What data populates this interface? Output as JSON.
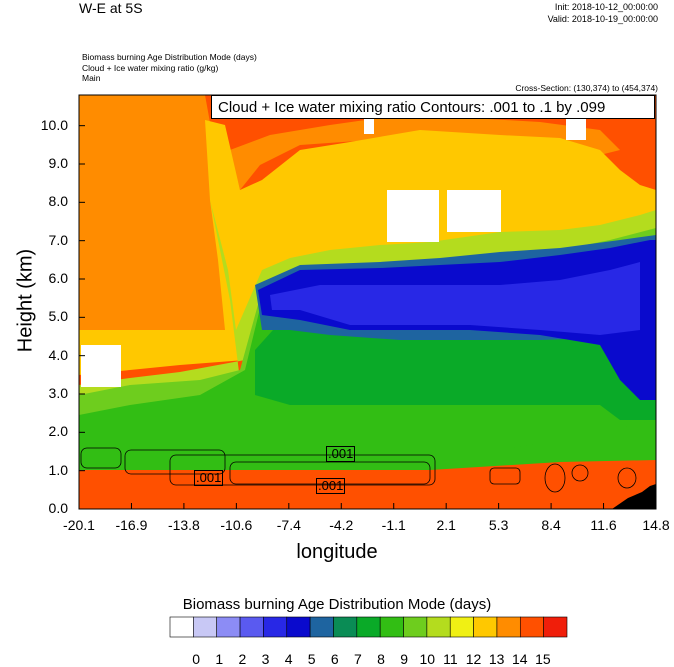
{
  "header": {
    "title": "W-E at 5S",
    "init": "Init: 2018-10-12_00:00:00",
    "valid": "Valid: 2018-10-19_00:00:00",
    "field_lines": [
      "Biomass burning Age Distribution Mode   (days)",
      "Cloud + Ice water mixing ratio   (g/kg)",
      "Main"
    ],
    "cross_section": "Cross-Section: (130,374) to (454,374)",
    "contour_info": "Cloud + Ice water mixing ratio Contours: .001 to .1 by .099"
  },
  "chart_data": {
    "type": "heatmap",
    "xlabel": "longitude",
    "ylabel": "Height (km)",
    "x_ticks": [
      "-20.1",
      "-16.9",
      "-13.8",
      "-10.6",
      "-7.4",
      "-4.2",
      "-1.1",
      "2.1",
      "5.3",
      "8.4",
      "11.6",
      "14.8"
    ],
    "y_ticks": [
      "0.0",
      "1.0",
      "2.0",
      "3.0",
      "4.0",
      "5.0",
      "6.0",
      "7.0",
      "8.0",
      "9.0",
      "10.0"
    ],
    "xlim": [
      -20.1,
      14.8
    ],
    "ylim": [
      0.0,
      10.8
    ],
    "colorbar": {
      "title": "Biomass burning Age Distribution Mode  (days)",
      "labels": [
        "0",
        "1",
        "2",
        "3",
        "4",
        "5",
        "6",
        "7",
        "8",
        "9",
        "10",
        "11",
        "12",
        "13",
        "14",
        "15"
      ],
      "colors": [
        "#ffffff",
        "#c8c8f5",
        "#8c8cf5",
        "#5a5af0",
        "#2828e6",
        "#0a0acd",
        "#1e64a0",
        "#0a8c55",
        "#0aaa28",
        "#32be14",
        "#6ecd1e",
        "#b4dc1e",
        "#f0f014",
        "#ffc800",
        "#ff8c00",
        "#ff5000",
        "#f01e0a"
      ]
    },
    "contour_labels": [
      ".001",
      ".001",
      ".001"
    ]
  }
}
